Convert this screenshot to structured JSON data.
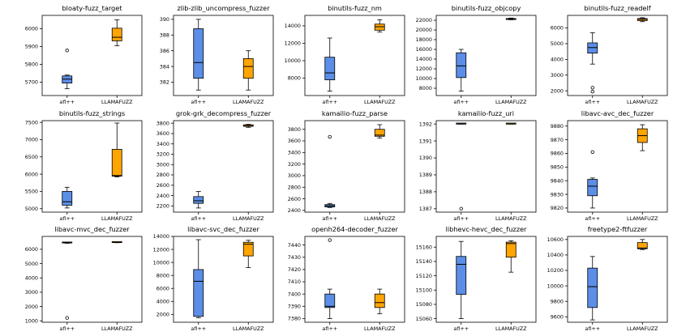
{
  "figure": {
    "colors": {
      "afl": "#5b8ee6",
      "llama": "#ffa500",
      "median": "#000000",
      "frame": "#000000"
    },
    "groups": [
      "afl++",
      "LLAMAFUZZ"
    ]
  },
  "chart_data": [
    {
      "type": "box",
      "title": "bloaty-fuzz_target",
      "ylim": [
        5625,
        6075
      ],
      "yticks": [
        5700,
        5800,
        5900,
        6000
      ],
      "boxes": [
        {
          "name": "afl++",
          "whislo": 5663,
          "q1": 5695,
          "med": 5717,
          "q3": 5735,
          "whishi": 5740,
          "fliers": [
            5878
          ]
        },
        {
          "name": "LLAMAFUZZ",
          "whislo": 5905,
          "q1": 5932,
          "med": 5952,
          "q3": 6003,
          "whishi": 6050,
          "fliers": []
        }
      ]
    },
    {
      "type": "box",
      "title": "zlib-zlib_uncompress_fuzzer",
      "ylim": [
        380.3,
        390.5
      ],
      "yticks": [
        382,
        384,
        386,
        388,
        390
      ],
      "boxes": [
        {
          "name": "afl++",
          "whislo": 381,
          "q1": 382.5,
          "med": 384.5,
          "q3": 388.8,
          "whishi": 390,
          "fliers": []
        },
        {
          "name": "LLAMAFUZZ",
          "whislo": 381,
          "q1": 382.5,
          "med": 384,
          "q3": 385,
          "whishi": 386,
          "fliers": []
        }
      ]
    },
    {
      "type": "box",
      "title": "binutils-fuzz_nm",
      "ylim": [
        6000,
        15200
      ],
      "yticks": [
        8000,
        10000,
        12000,
        14000
      ],
      "boxes": [
        {
          "name": "afl++",
          "whislo": 6500,
          "q1": 7800,
          "med": 8600,
          "q3": 10400,
          "whishi": 12600,
          "fliers": []
        },
        {
          "name": "LLAMAFUZZ",
          "whislo": 13300,
          "q1": 13500,
          "med": 13900,
          "q3": 14200,
          "whishi": 14700,
          "fliers": []
        }
      ]
    },
    {
      "type": "box",
      "title": "binutils-fuzz_objcopy",
      "ylim": [
        6500,
        23000
      ],
      "yticks": [
        8000,
        10000,
        12000,
        14000,
        16000,
        18000,
        20000,
        22000
      ],
      "boxes": [
        {
          "name": "afl++",
          "whislo": 7400,
          "q1": 10200,
          "med": 12600,
          "q3": 15300,
          "whishi": 16000,
          "fliers": []
        },
        {
          "name": "LLAMAFUZZ",
          "whislo": 22100,
          "q1": 22150,
          "med": 22250,
          "q3": 22350,
          "whishi": 22450,
          "fliers": []
        }
      ]
    },
    {
      "type": "box",
      "title": "binutils-fuzz_readelf",
      "ylim": [
        1700,
        6800
      ],
      "yticks": [
        2000,
        3000,
        4000,
        5000,
        6000
      ],
      "boxes": [
        {
          "name": "afl++",
          "whislo": 3700,
          "q1": 4400,
          "med": 4750,
          "q3": 5050,
          "whishi": 5700,
          "fliers": [
            2200,
            1950
          ]
        },
        {
          "name": "LLAMAFUZZ",
          "whislo": 6400,
          "q1": 6470,
          "med": 6550,
          "q3": 6600,
          "whishi": 6650,
          "fliers": []
        }
      ]
    },
    {
      "type": "box",
      "title": "binutils-fuzz_strings",
      "ylim": [
        4900,
        7550
      ],
      "yticks": [
        5000,
        5500,
        6000,
        6500,
        7000,
        7500
      ],
      "boxes": [
        {
          "name": "afl++",
          "whislo": 5020,
          "q1": 5100,
          "med": 5200,
          "q3": 5500,
          "whishi": 5620,
          "fliers": []
        },
        {
          "name": "LLAMAFUZZ",
          "whislo": 5920,
          "q1": 5940,
          "med": 5960,
          "q3": 6720,
          "whishi": 7480,
          "fliers": []
        }
      ]
    },
    {
      "type": "box",
      "title": "grok-grk_decompress_fuzzer",
      "ylim": [
        2080,
        3850
      ],
      "yticks": [
        2200,
        2400,
        2600,
        2800,
        3000,
        3200,
        3400,
        3600,
        3800
      ],
      "boxes": [
        {
          "name": "afl++",
          "whislo": 2160,
          "q1": 2250,
          "med": 2300,
          "q3": 2380,
          "whishi": 2480,
          "fliers": []
        },
        {
          "name": "LLAMAFUZZ",
          "whislo": 3720,
          "q1": 3740,
          "med": 3750,
          "q3": 3770,
          "whishi": 3780,
          "fliers": []
        }
      ]
    },
    {
      "type": "box",
      "title": "kamailio-fuzz_parse",
      "ylim": [
        2370,
        3950
      ],
      "yticks": [
        2400,
        2600,
        2800,
        3000,
        3200,
        3400,
        3600,
        3800
      ],
      "boxes": [
        {
          "name": "afl++",
          "whislo": 2450,
          "q1": 2460,
          "med": 2480,
          "q3": 2500,
          "whishi": 2520,
          "fliers": [
            3670
          ]
        },
        {
          "name": "LLAMAFUZZ",
          "whislo": 3650,
          "q1": 3680,
          "med": 3700,
          "q3": 3800,
          "whishi": 3880,
          "fliers": []
        }
      ]
    },
    {
      "type": "box",
      "title": "kamailio-fuzz_uri",
      "ylim": [
        1386.8,
        1392.2
      ],
      "yticks": [
        1387,
        1388,
        1389,
        1390,
        1391,
        1392
      ],
      "boxes": [
        {
          "name": "afl++",
          "whislo": 1392,
          "q1": 1392,
          "med": 1392,
          "q3": 1392,
          "whishi": 1392,
          "fliers": [
            1387
          ]
        },
        {
          "name": "LLAMAFUZZ",
          "whislo": 1392,
          "q1": 1392,
          "med": 1392,
          "q3": 1392,
          "whishi": 1392,
          "fliers": []
        }
      ]
    },
    {
      "type": "box",
      "title": "libavc-avc_dec_fuzzer",
      "ylim": [
        9817,
        9884
      ],
      "yticks": [
        9820,
        9830,
        9840,
        9850,
        9860,
        9870,
        9880
      ],
      "boxes": [
        {
          "name": "afl++",
          "whislo": 9820,
          "q1": 9829,
          "med": 9836,
          "q3": 9841,
          "whishi": 9842,
          "fliers": [
            9861
          ]
        },
        {
          "name": "LLAMAFUZZ",
          "whislo": 9862,
          "q1": 9868,
          "med": 9873,
          "q3": 9878,
          "whishi": 9881,
          "fliers": []
        }
      ]
    },
    {
      "type": "box",
      "title": "libavc-mvc_dec_fuzzer",
      "ylim": [
        900,
        6900
      ],
      "yticks": [
        1000,
        2000,
        3000,
        4000,
        5000,
        6000
      ],
      "boxes": [
        {
          "name": "afl++",
          "whislo": 6420,
          "q1": 6440,
          "med": 6460,
          "q3": 6480,
          "whishi": 6500,
          "fliers": [
            1200
          ]
        },
        {
          "name": "LLAMAFUZZ",
          "whislo": 6460,
          "q1": 6470,
          "med": 6480,
          "q3": 6490,
          "whishi": 6500,
          "fliers": []
        }
      ]
    },
    {
      "type": "box",
      "title": "libavc-svc_dec_fuzzer",
      "ylim": [
        800,
        14000
      ],
      "yticks": [
        2000,
        4000,
        6000,
        8000,
        10000,
        12000,
        14000
      ],
      "boxes": [
        {
          "name": "afl++",
          "whislo": 1500,
          "q1": 1700,
          "med": 7100,
          "q3": 8900,
          "whishi": 13500,
          "fliers": []
        },
        {
          "name": "LLAMAFUZZ",
          "whislo": 9200,
          "q1": 11000,
          "med": 12800,
          "q3": 13100,
          "whishi": 13400,
          "fliers": []
        }
      ]
    },
    {
      "type": "box",
      "title": "openh264-decoder_fuzzer",
      "ylim": [
        7377,
        7447
      ],
      "yticks": [
        7380,
        7390,
        7400,
        7410,
        7420,
        7430,
        7440
      ],
      "boxes": [
        {
          "name": "afl++",
          "whislo": 7380,
          "q1": 7389,
          "med": 7390,
          "q3": 7400,
          "whishi": 7404,
          "fliers": [
            7444
          ]
        },
        {
          "name": "LLAMAFUZZ",
          "whislo": 7384,
          "q1": 7389,
          "med": 7393,
          "q3": 7400,
          "whishi": 7404,
          "fliers": []
        }
      ]
    },
    {
      "type": "box",
      "title": "libhevc-hevc_dec_fuzzer",
      "ylim": [
        15055,
        15175
      ],
      "yticks": [
        15060,
        15080,
        15100,
        15120,
        15140,
        15160
      ],
      "boxes": [
        {
          "name": "afl++",
          "whislo": 15060,
          "q1": 15094,
          "med": 15136,
          "q3": 15147,
          "whishi": 15168,
          "fliers": []
        },
        {
          "name": "LLAMAFUZZ",
          "whislo": 15125,
          "q1": 15146,
          "med": 15165,
          "q3": 15167,
          "whishi": 15169,
          "fliers": []
        }
      ]
    },
    {
      "type": "box",
      "title": "freetype2-ftfuzzer",
      "ylim": [
        9530,
        10640
      ],
      "yticks": [
        9600,
        9800,
        10000,
        10200,
        10400,
        10600
      ],
      "boxes": [
        {
          "name": "afl++",
          "whislo": 9560,
          "q1": 9720,
          "med": 9990,
          "q3": 10230,
          "whishi": 10380,
          "fliers": []
        },
        {
          "name": "LLAMAFUZZ",
          "whislo": 10470,
          "q1": 10480,
          "med": 10490,
          "q3": 10560,
          "whishi": 10600,
          "fliers": []
        }
      ]
    }
  ]
}
